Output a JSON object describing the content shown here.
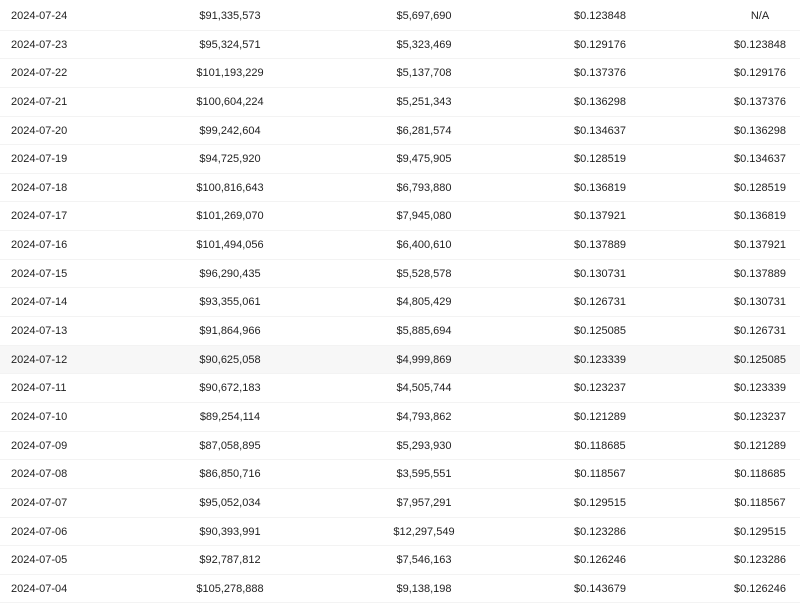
{
  "table": {
    "highlighted_row": "2024-07-12",
    "rows": [
      [
        "2024-07-24",
        "$91,335,573",
        "$5,697,690",
        "$0.123848",
        "N/A"
      ],
      [
        "2024-07-23",
        "$95,324,571",
        "$5,323,469",
        "$0.129176",
        "$0.123848"
      ],
      [
        "2024-07-22",
        "$101,193,229",
        "$5,137,708",
        "$0.137376",
        "$0.129176"
      ],
      [
        "2024-07-21",
        "$100,604,224",
        "$5,251,343",
        "$0.136298",
        "$0.137376"
      ],
      [
        "2024-07-20",
        "$99,242,604",
        "$6,281,574",
        "$0.134637",
        "$0.136298"
      ],
      [
        "2024-07-19",
        "$94,725,920",
        "$9,475,905",
        "$0.128519",
        "$0.134637"
      ],
      [
        "2024-07-18",
        "$100,816,643",
        "$6,793,880",
        "$0.136819",
        "$0.128519"
      ],
      [
        "2024-07-17",
        "$101,269,070",
        "$7,945,080",
        "$0.137921",
        "$0.136819"
      ],
      [
        "2024-07-16",
        "$101,494,056",
        "$6,400,610",
        "$0.137889",
        "$0.137921"
      ],
      [
        "2024-07-15",
        "$96,290,435",
        "$5,528,578",
        "$0.130731",
        "$0.137889"
      ],
      [
        "2024-07-14",
        "$93,355,061",
        "$4,805,429",
        "$0.126731",
        "$0.130731"
      ],
      [
        "2024-07-13",
        "$91,864,966",
        "$5,885,694",
        "$0.125085",
        "$0.126731"
      ],
      [
        "2024-07-12",
        "$90,625,058",
        "$4,999,869",
        "$0.123339",
        "$0.125085"
      ],
      [
        "2024-07-11",
        "$90,672,183",
        "$4,505,744",
        "$0.123237",
        "$0.123339"
      ],
      [
        "2024-07-10",
        "$89,254,114",
        "$4,793,862",
        "$0.121289",
        "$0.123237"
      ],
      [
        "2024-07-09",
        "$87,058,895",
        "$5,293,930",
        "$0.118685",
        "$0.121289"
      ],
      [
        "2024-07-08",
        "$86,850,716",
        "$3,595,551",
        "$0.118567",
        "$0.118685"
      ],
      [
        "2024-07-07",
        "$95,052,034",
        "$7,957,291",
        "$0.129515",
        "$0.118567"
      ],
      [
        "2024-07-06",
        "$90,393,991",
        "$12,297,549",
        "$0.123286",
        "$0.129515"
      ],
      [
        "2024-07-05",
        "$92,787,812",
        "$7,546,163",
        "$0.126246",
        "$0.123286"
      ],
      [
        "2024-07-04",
        "$105,278,888",
        "$9,138,198",
        "$0.143679",
        "$0.126246"
      ]
    ]
  }
}
